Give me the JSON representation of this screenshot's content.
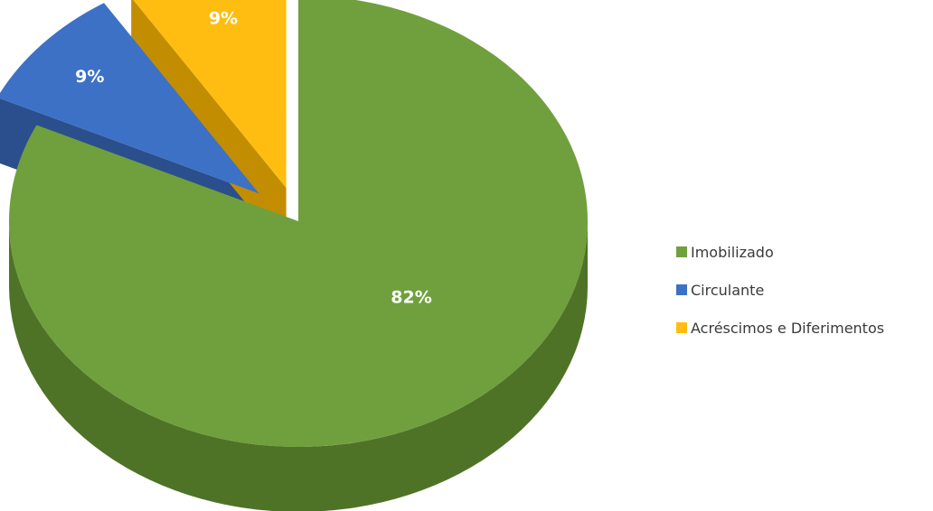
{
  "chart_data": {
    "type": "pie",
    "style": "3d-exploded",
    "legend_position": "right",
    "title": "",
    "slices": [
      {
        "label": "Imobilizado",
        "value": 82,
        "display": "82%",
        "color": "#70A03D",
        "dark": "#4E7327"
      },
      {
        "label": "Circulante",
        "value": 9,
        "display": "9%",
        "color": "#3D71C6",
        "dark": "#2A4F8C"
      },
      {
        "label": "Acréscimos e Diferimentos",
        "value": 9,
        "display": "9%",
        "color": "#FFBD11",
        "dark": "#C28D00"
      }
    ]
  }
}
